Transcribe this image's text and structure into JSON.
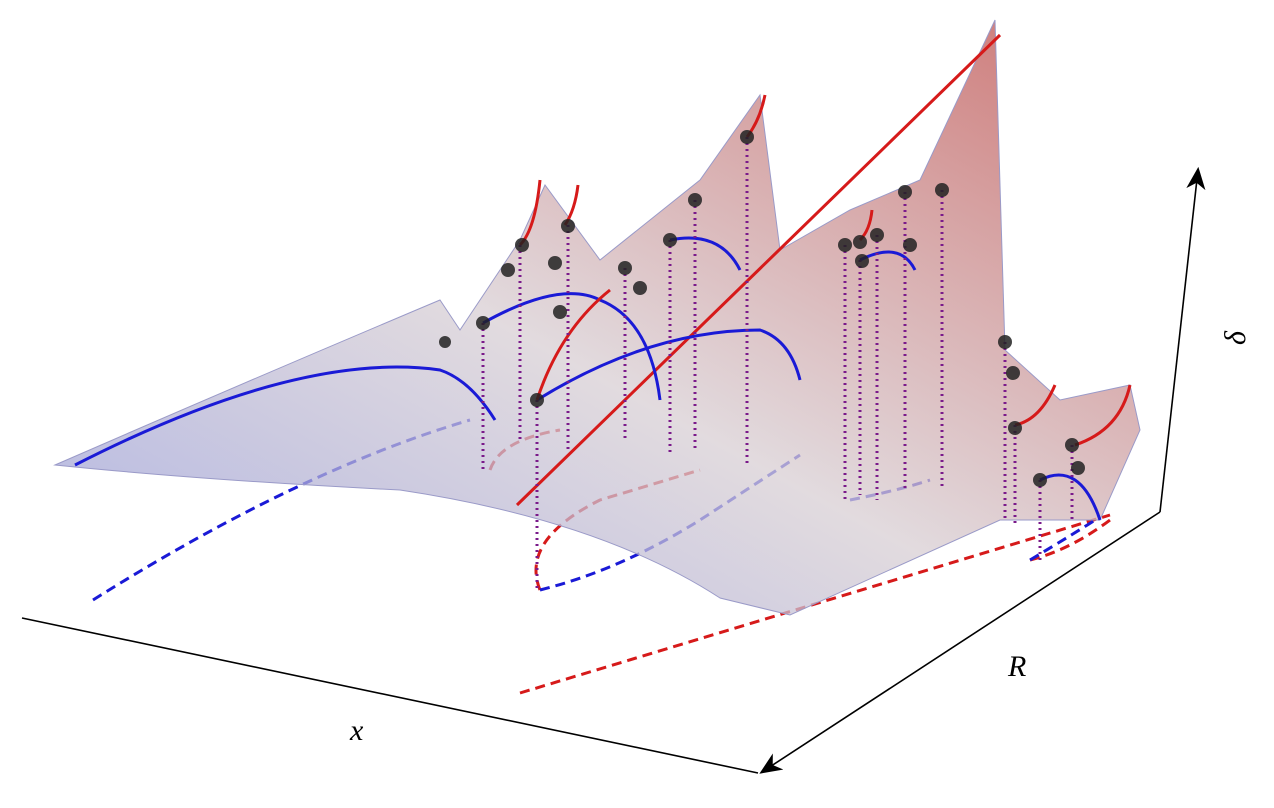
{
  "axes": {
    "x_label": "x",
    "r_label": "R",
    "delta_label": "δ"
  }
}
